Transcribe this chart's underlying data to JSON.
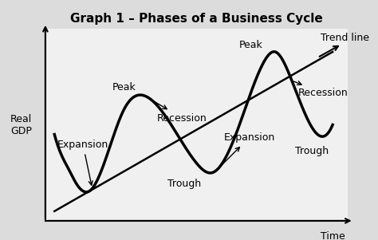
{
  "title": "Graph 1 – Phases of a Business Cycle",
  "xlabel": "Time",
  "ylabel": "Real\nGDP",
  "fig_bg": "#dcdcdc",
  "ax_bg": "#f0f0f0",
  "title_fontsize": 11,
  "label_fontsize": 9,
  "annotation_fontsize": 9,
  "curve_lw": 2.5,
  "trend_lw": 1.8,
  "xlim": [
    0,
    10
  ],
  "ylim": [
    0,
    10
  ],
  "trend_x0": 0.3,
  "trend_y0": 0.5,
  "trend_x1": 9.5,
  "trend_y1": 8.8,
  "cycle_points_x": [
    0.3,
    0.6,
    0.8,
    1.0,
    1.5,
    2.6,
    3.3,
    3.95,
    5.0,
    5.5,
    6.3,
    7.2,
    7.6,
    8.1,
    9.0,
    9.5
  ],
  "cycle_points_y": [
    4.5,
    3.2,
    2.6,
    2.0,
    1.6,
    5.8,
    6.5,
    5.5,
    3.0,
    2.5,
    4.5,
    8.2,
    8.8,
    7.5,
    4.5,
    5.0
  ]
}
